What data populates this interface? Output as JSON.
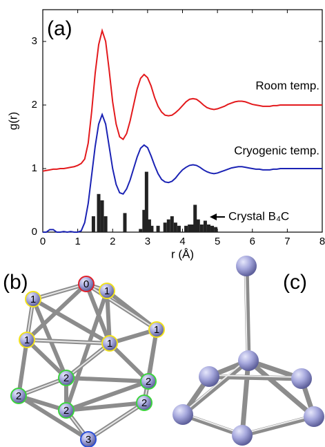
{
  "chart_data": {
    "type": "line",
    "panel_label": "(a)",
    "xlabel": "r (Å)",
    "ylabel": "g(r)",
    "x": [
      0,
      0.1,
      0.2,
      0.3,
      0.4,
      0.5,
      0.6,
      0.7,
      0.8,
      0.9,
      1,
      1.1,
      1.2,
      1.3,
      1.4,
      1.5,
      1.6,
      1.7,
      1.8,
      1.9,
      2,
      2.1,
      2.2,
      2.3,
      2.4,
      2.5,
      2.6,
      2.7,
      2.8,
      2.9,
      3,
      3.1,
      3.2,
      3.3,
      3.4,
      3.5,
      3.6,
      3.7,
      3.8,
      3.9,
      4,
      4.1,
      4.2,
      4.3,
      4.4,
      4.5,
      4.6,
      4.7,
      4.8,
      4.9,
      5,
      5.1,
      5.2,
      5.3,
      5.4,
      5.5,
      5.6,
      5.7,
      5.8,
      5.9,
      6,
      6.1,
      6.2,
      6.3,
      6.4,
      6.5,
      6.6,
      6.7,
      6.8,
      6.9,
      7,
      7.1,
      7.2,
      7.3,
      7.4,
      7.5,
      7.6,
      7.7,
      7.8,
      7.9,
      8
    ],
    "series": [
      {
        "name": "Room temp.",
        "color": "#e3191c",
        "values": [
          0.96,
          0.97,
          0.98,
          0.99,
          0.99,
          1,
          1,
          1.01,
          1.02,
          1.03,
          1.05,
          1.08,
          1.15,
          1.4,
          1.9,
          2.5,
          2.95,
          3.17,
          3,
          2.55,
          2.05,
          1.7,
          1.5,
          1.46,
          1.55,
          1.75,
          2,
          2.25,
          2.42,
          2.48,
          2.43,
          2.3,
          2.12,
          1.98,
          1.89,
          1.84,
          1.83,
          1.84,
          1.88,
          1.93,
          1.99,
          2.05,
          2.09,
          2.1,
          2.09,
          2.05,
          2,
          1.96,
          1.94,
          1.93,
          1.94,
          1.96,
          1.98,
          2.01,
          2.03,
          2.05,
          2.06,
          2.06,
          2.05,
          2.03,
          2.01,
          2,
          1.99,
          1.98,
          1.98,
          1.98,
          1.99,
          1.99,
          2,
          2,
          2,
          2,
          2,
          2,
          2,
          2,
          2,
          2,
          2,
          2,
          2
        ]
      },
      {
        "name": "Cryogenic temp.",
        "color": "#1a22b4",
        "values": [
          0,
          0,
          0.04,
          0.04,
          0,
          0,
          0.01,
          0,
          0.01,
          0,
          0,
          0.02,
          0.15,
          0.45,
          0.9,
          1.35,
          1.7,
          1.85,
          1.7,
          1.35,
          1,
          0.75,
          0.62,
          0.6,
          0.68,
          0.82,
          1,
          1.18,
          1.32,
          1.37,
          1.33,
          1.2,
          1.05,
          0.92,
          0.83,
          0.79,
          0.78,
          0.8,
          0.85,
          0.92,
          0.98,
          1.02,
          1.05,
          1.06,
          1.05,
          1.02,
          0.98,
          0.95,
          0.93,
          0.92,
          0.93,
          0.95,
          0.97,
          0.99,
          1.01,
          1.02,
          1.03,
          1.03,
          1.02,
          1.01,
          1,
          0.99,
          0.99,
          0.98,
          0.98,
          0.98,
          0.99,
          0.99,
          1,
          1,
          1,
          1,
          1,
          1,
          1,
          1,
          1,
          1,
          1,
          1,
          1
        ]
      },
      {
        "name": "Crystal B₄C",
        "color": "#222222",
        "type": "bar",
        "x": [
          1.45,
          1.6,
          1.7,
          1.8,
          2.35,
          2.8,
          2.9,
          2.97,
          3.05,
          3.12,
          3.3,
          3.5,
          3.6,
          3.7,
          3.8,
          3.9,
          4.1,
          4.2,
          4.28,
          4.36,
          4.45,
          4.55,
          4.65,
          4.75,
          4.85,
          4.95
        ],
        "values": [
          0.25,
          0.6,
          0.5,
          0.25,
          0.3,
          0.05,
          0.35,
          0.95,
          0.2,
          0.1,
          0.1,
          0.15,
          0.2,
          0.25,
          0.15,
          0.1,
          0.1,
          0.12,
          0.12,
          0.43,
          0.2,
          0.12,
          0.18,
          0.12,
          0.1,
          0.08
        ]
      }
    ],
    "xlim": [
      0,
      8
    ],
    "xticks": [
      0,
      1,
      2,
      3,
      4,
      5,
      6,
      7,
      8
    ],
    "ylim": [
      0,
      3.5
    ],
    "yticks": [
      0,
      1,
      2,
      3
    ]
  },
  "panels": {
    "b": {
      "label": "(b)",
      "node_labels": [
        "0",
        "1",
        "1",
        "1",
        "1",
        "1",
        "2",
        "2",
        "2",
        "2",
        "2",
        "3"
      ]
    },
    "c": {
      "label": "(c)"
    }
  }
}
